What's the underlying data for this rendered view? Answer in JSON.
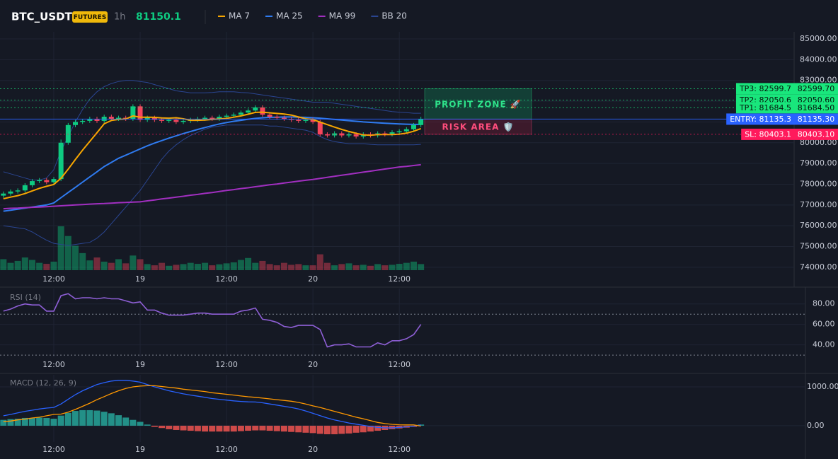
{
  "header": {
    "symbol": "BTC_USDT",
    "badge": "FUTURES",
    "interval": "1h",
    "last_price": 81150.1
  },
  "chart_data": [
    {
      "type": "candlestick",
      "categories": [
        null,
        null,
        null,
        null,
        null,
        null,
        null,
        "12:00",
        null,
        null,
        null,
        null,
        null,
        null,
        null,
        null,
        null,
        null,
        null,
        "19",
        null,
        null,
        null,
        null,
        null,
        null,
        null,
        null,
        null,
        null,
        null,
        "12:00",
        null,
        null,
        null,
        null,
        null,
        null,
        null,
        null,
        null,
        null,
        null,
        "20",
        null,
        null,
        null,
        null,
        null,
        null,
        null,
        null,
        null,
        null,
        null,
        "12:00",
        null,
        null,
        null
      ],
      "open": [
        77450,
        77550,
        77650,
        77700,
        77950,
        78150,
        78200,
        78100,
        78250,
        80000,
        80850,
        81000,
        81050,
        81150,
        81050,
        81250,
        81150,
        81200,
        81150,
        81750,
        81100,
        81200,
        81100,
        81050,
        81100,
        81000,
        81050,
        81100,
        81150,
        81200,
        81150,
        81250,
        81300,
        81350,
        81450,
        81550,
        81700,
        81350,
        81250,
        81200,
        81150,
        81100,
        81050,
        81100,
        81000,
        80400,
        80350,
        80450,
        80350,
        80400,
        80300,
        80400,
        80350,
        80450,
        80400,
        80500,
        80550,
        80650,
        80850
      ],
      "high": [
        77650,
        77750,
        77800,
        78050,
        78250,
        78300,
        78300,
        78350,
        80150,
        80950,
        81100,
        81150,
        81250,
        81250,
        81350,
        81350,
        81300,
        81300,
        81850,
        81850,
        81300,
        81300,
        81200,
        81200,
        81200,
        81150,
        81200,
        81250,
        81300,
        81300,
        81350,
        81400,
        81450,
        81550,
        81650,
        81800,
        81800,
        81450,
        81350,
        81300,
        81250,
        81200,
        81200,
        81200,
        81100,
        80500,
        80550,
        80550,
        80500,
        80500,
        80500,
        80500,
        80550,
        80550,
        80600,
        80650,
        80750,
        80950,
        81250
      ],
      "low": [
        77350,
        77450,
        77550,
        77600,
        77850,
        78050,
        78000,
        78000,
        78150,
        79900,
        80750,
        80900,
        80950,
        80950,
        80950,
        81050,
        81050,
        81050,
        81050,
        81000,
        81000,
        81000,
        80950,
        80950,
        80900,
        80900,
        80950,
        81000,
        81050,
        81050,
        81050,
        81150,
        81200,
        81250,
        81350,
        81450,
        81250,
        81150,
        81100,
        81050,
        81000,
        80950,
        80950,
        80900,
        80300,
        80250,
        80250,
        80250,
        80250,
        80200,
        80200,
        80250,
        80250,
        80300,
        80300,
        80400,
        80450,
        80550,
        80750
      ],
      "close": [
        77550,
        77650,
        77700,
        77950,
        78150,
        78200,
        78100,
        78250,
        80000,
        80850,
        81000,
        81050,
        81150,
        81050,
        81250,
        81150,
        81200,
        81150,
        81750,
        81100,
        81200,
        81100,
        81050,
        81100,
        81000,
        81050,
        81100,
        81150,
        81200,
        81150,
        81250,
        81300,
        81350,
        81450,
        81550,
        81700,
        81350,
        81250,
        81200,
        81150,
        81100,
        81050,
        81100,
        81000,
        80400,
        80350,
        80450,
        80350,
        80400,
        80300,
        80400,
        80350,
        80450,
        80400,
        80500,
        80550,
        80650,
        80850,
        81150.1
      ],
      "up_color": "#0ecb81",
      "down_color": "#f6465d",
      "volume": {
        "values": [
          450,
          300,
          380,
          520,
          420,
          300,
          260,
          350,
          1800,
          1400,
          1000,
          700,
          400,
          520,
          350,
          300,
          450,
          280,
          600,
          450,
          250,
          200,
          300,
          180,
          220,
          250,
          300,
          260,
          300,
          200,
          240,
          280,
          320,
          420,
          500,
          300,
          380,
          250,
          200,
          300,
          220,
          250,
          200,
          200,
          650,
          300,
          200,
          250,
          280,
          200,
          220,
          180,
          250,
          200,
          220,
          260,
          300,
          350,
          250
        ],
        "ylim": [
          0,
          2900
        ]
      },
      "series": [
        {
          "name": "MA 7",
          "color": "#f7a600",
          "values": [
            77300,
            77380,
            77450,
            77550,
            77680,
            77800,
            77900,
            77990,
            78290,
            78720,
            79190,
            79640,
            80060,
            80480,
            80910,
            81070,
            81120,
            81140,
            81290,
            81230,
            81230,
            81220,
            81190,
            81180,
            81200,
            81150,
            81080,
            81080,
            81090,
            81120,
            81140,
            81170,
            81230,
            81290,
            81370,
            81460,
            81470,
            81440,
            81410,
            81380,
            81330,
            81240,
            81150,
            81120,
            80990,
            80870,
            80750,
            80640,
            80540,
            80450,
            80380,
            80360,
            80390,
            80390,
            80390,
            80410,
            80460,
            80550,
            80680
          ]
        },
        {
          "name": "MA 25",
          "color": "#2f7bf0",
          "values": [
            76700,
            76750,
            76800,
            76850,
            76900,
            76950,
            77000,
            77100,
            77350,
            77600,
            77850,
            78100,
            78350,
            78600,
            78850,
            79050,
            79250,
            79400,
            79550,
            79700,
            79850,
            79980,
            80100,
            80220,
            80330,
            80440,
            80540,
            80640,
            80730,
            80820,
            80900,
            80970,
            81030,
            81080,
            81130,
            81170,
            81200,
            81220,
            81230,
            81240,
            81240,
            81230,
            81220,
            81200,
            81180,
            81150,
            81120,
            81090,
            81060,
            81030,
            81000,
            80980,
            80960,
            80940,
            80920,
            80900,
            80890,
            80880,
            80880
          ]
        },
        {
          "name": "MA 99",
          "color": "#a12fc0",
          "values": [
            76820,
            76840,
            76850,
            76870,
            76890,
            76900,
            76920,
            76940,
            76960,
            76980,
            77000,
            77020,
            77040,
            77060,
            77070,
            77090,
            77110,
            77120,
            77140,
            77150,
            77200,
            77240,
            77290,
            77330,
            77380,
            77420,
            77470,
            77510,
            77560,
            77600,
            77650,
            77700,
            77740,
            77790,
            77830,
            77880,
            77920,
            77970,
            78010,
            78060,
            78100,
            78150,
            78190,
            78230,
            78280,
            78330,
            78380,
            78430,
            78480,
            78530,
            78580,
            78630,
            78680,
            78730,
            78780,
            78830,
            78860,
            78900,
            78940
          ]
        },
        {
          "name": "BB 20",
          "color": "#2a4590",
          "upper": [
            78600,
            78500,
            78400,
            78300,
            78200,
            78200,
            78300,
            78700,
            79600,
            80300,
            81000,
            81600,
            82100,
            82450,
            82700,
            82850,
            82950,
            83000,
            83000,
            82950,
            82900,
            82800,
            82700,
            82600,
            82500,
            82450,
            82400,
            82400,
            82400,
            82420,
            82450,
            82450,
            82450,
            82420,
            82400,
            82350,
            82300,
            82250,
            82200,
            82150,
            82100,
            82050,
            82000,
            81950,
            81950,
            81950,
            81900,
            81850,
            81800,
            81750,
            81700,
            81650,
            81600,
            81550,
            81500,
            81470,
            81450,
            81420,
            81420
          ],
          "lower": [
            76000,
            75950,
            75900,
            75850,
            75700,
            75500,
            75300,
            75150,
            75100,
            75050,
            75100,
            75150,
            75200,
            75400,
            75700,
            76100,
            76500,
            76900,
            77300,
            77700,
            78200,
            78700,
            79200,
            79600,
            79900,
            80150,
            80350,
            80500,
            80650,
            80750,
            80800,
            80850,
            80850,
            80850,
            80850,
            80850,
            80850,
            80800,
            80800,
            80750,
            80700,
            80650,
            80600,
            80500,
            80300,
            80150,
            80050,
            80000,
            79950,
            79950,
            79950,
            79920,
            79900,
            79900,
            79900,
            79900,
            79900,
            79900,
            79920
          ]
        }
      ],
      "ylim": [
        73860,
        85340
      ],
      "yticks": [
        {
          "value": 74000,
          "label": "74000.00"
        },
        {
          "value": 75000,
          "label": "75000.00"
        },
        {
          "value": 76000,
          "label": "76000.00"
        },
        {
          "value": 77000,
          "label": "77000.00"
        },
        {
          "value": 78000,
          "label": "78000.00"
        },
        {
          "value": 79000,
          "label": "79000.00"
        },
        {
          "value": 80000,
          "label": "80000.00"
        },
        {
          "value": 81000,
          "label": "81000.00"
        },
        {
          "value": 82000,
          "label": "82000.00"
        },
        {
          "value": 83000,
          "label": "83000.00"
        },
        {
          "value": 84000,
          "label": "84000.00"
        },
        {
          "value": 85000,
          "label": "85000.00"
        }
      ],
      "grid": true,
      "levels": [
        {
          "value": 82599.7,
          "label": "TP3: 82599.7",
          "price_label": "82599.70",
          "color": "#19e67c",
          "text_color": "#06140c",
          "line_style": "dotted"
        },
        {
          "value": 82050.6,
          "label": "TP2: 82050.6",
          "price_label": "82050.60",
          "color": "#19e67c",
          "text_color": "#06140c",
          "line_style": "dotted"
        },
        {
          "value": 81684.5,
          "label": "TP1: 81684.5",
          "price_label": "81684.50",
          "color": "#19e67c",
          "text_color": "#06140c",
          "line_style": "dotted"
        },
        {
          "value": 81135.3,
          "label": "ENTRY: 81135.3",
          "price_label": "81135.30",
          "color": "#2962ff",
          "text_color": "#ffffff",
          "line_style": "solid"
        },
        {
          "value": 80403.1,
          "label": "SL: 80403.1",
          "price_label": "80403.10",
          "color": "#ff1a5c",
          "text_color": "#ffffff",
          "line_style": "dotted"
        }
      ],
      "zones": [
        {
          "label": "PROFIT ZONE 🚀",
          "color": "#2ee28a"
        },
        {
          "label": "RISK AREA 🛡️",
          "color": "#ff4d7d"
        }
      ]
    },
    {
      "type": "line",
      "title": "RSI (14)",
      "color": "#8e5fd6",
      "values": [
        73,
        75,
        78,
        80,
        79,
        79,
        73,
        73,
        88,
        90,
        85,
        86,
        86,
        85,
        86,
        85,
        85,
        83,
        81,
        82,
        74,
        74,
        71,
        69,
        69,
        69,
        70,
        71,
        71,
        70,
        70,
        70,
        70,
        73,
        74,
        76,
        65,
        64,
        62,
        58,
        57,
        59,
        59,
        59,
        55,
        38,
        40,
        40,
        41,
        38,
        38,
        38,
        42,
        40,
        44,
        44,
        46,
        50,
        60
      ],
      "ylim": [
        28,
        95
      ],
      "yticks": [
        {
          "value": 40,
          "label": "40.00"
        },
        {
          "value": 60,
          "label": "60.00"
        },
        {
          "value": 80,
          "label": "80.00"
        }
      ],
      "levels": [
        70,
        30
      ]
    },
    {
      "type": "macd",
      "title": "MACD (12, 26, 9)",
      "macd": {
        "color": "#2962ff",
        "values": [
          255,
          290,
          330,
          370,
          400,
          430,
          455,
          470,
          560,
          680,
          800,
          900,
          980,
          1060,
          1110,
          1150,
          1170,
          1170,
          1150,
          1120,
          1060,
          1000,
          950,
          900,
          860,
          820,
          790,
          760,
          730,
          700,
          680,
          660,
          640,
          625,
          615,
          610,
          590,
          560,
          530,
          500,
          470,
          430,
          380,
          320,
          260,
          200,
          150,
          110,
          70,
          40,
          10,
          -20,
          -45,
          -55,
          -55,
          -45,
          -30,
          -10,
          20
        ]
      },
      "signal": {
        "color": "#ff9800",
        "values": [
          105,
          120,
          150,
          170,
          200,
          220,
          255,
          290,
          300,
          350,
          420,
          500,
          580,
          670,
          750,
          830,
          900,
          960,
          1000,
          1020,
          1030,
          1030,
          1010,
          990,
          970,
          940,
          920,
          900,
          880,
          850,
          830,
          810,
          790,
          765,
          745,
          730,
          710,
          690,
          670,
          650,
          630,
          600,
          560,
          510,
          470,
          420,
          370,
          320,
          270,
          220,
          180,
          130,
          85,
          55,
          35,
          25,
          20,
          20,
          -10
        ]
      },
      "histogram": {
        "up_color": "#26a69a",
        "down_color": "#ef5350",
        "values": [
          150,
          170,
          180,
          200,
          200,
          210,
          200,
          180,
          260,
          330,
          380,
          400,
          400,
          390,
          360,
          320,
          270,
          210,
          150,
          100,
          30,
          -30,
          -60,
          -90,
          -110,
          -120,
          -130,
          -140,
          -150,
          -150,
          -150,
          -150,
          -150,
          -140,
          -130,
          -120,
          -120,
          -130,
          -140,
          -150,
          -160,
          -170,
          -180,
          -190,
          -210,
          -220,
          -220,
          -210,
          -200,
          -180,
          -170,
          -150,
          -130,
          -110,
          -90,
          -70,
          -50,
          -30,
          30
        ]
      },
      "ylim": [
        -420,
        1310
      ],
      "yticks": [
        {
          "value": 0,
          "label": "0.00"
        },
        {
          "value": 1000,
          "label": "1000.00"
        }
      ]
    }
  ]
}
